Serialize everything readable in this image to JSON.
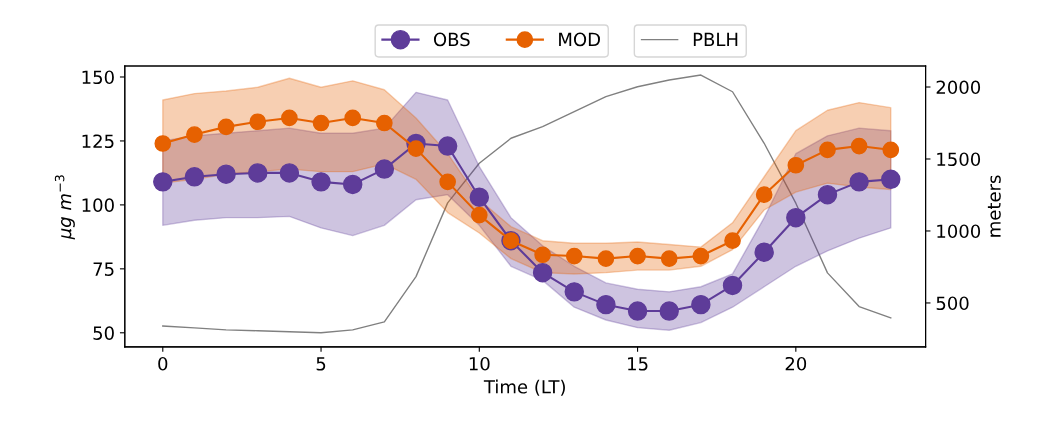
{
  "chart_data": {
    "type": "line",
    "xlabel": "Time (LT)",
    "ylabel": "μg m$^{−3}$",
    "y2label": "meters",
    "x": [
      0,
      1,
      2,
      3,
      4,
      5,
      6,
      7,
      8,
      9,
      10,
      11,
      12,
      13,
      14,
      15,
      16,
      17,
      18,
      19,
      20,
      21,
      22,
      23
    ],
    "series": [
      {
        "name": "OBS",
        "color": "#5e3c99",
        "marker": "circle",
        "values": [
          109,
          111,
          112,
          112.5,
          112.5,
          109,
          108,
          114,
          124,
          123,
          103,
          86,
          73.5,
          66,
          61,
          58.5,
          58.5,
          61,
          68.5,
          81.5,
          95,
          104,
          109,
          110
        ],
        "lower": [
          92,
          94,
          95,
          95,
          95.5,
          91,
          88,
          92,
          102,
          104,
          92,
          76,
          70.5,
          60,
          55,
          52,
          51,
          54,
          60,
          68,
          76,
          82,
          87,
          91
        ],
        "upper": [
          125,
          127,
          128,
          129,
          130,
          128,
          128,
          130,
          144,
          141,
          115,
          95,
          84,
          76,
          69.5,
          67,
          66,
          68,
          73,
          95,
          120,
          127,
          130,
          129
        ]
      },
      {
        "name": "MOD",
        "color": "#e66101",
        "marker": "circle",
        "values": [
          124,
          127.5,
          130.5,
          132.5,
          134,
          132,
          134,
          132,
          122,
          109,
          96,
          86,
          80.5,
          80,
          79,
          80,
          79,
          80,
          86,
          104,
          115.5,
          121.5,
          123,
          121.5
        ],
        "lower": [
          108.5,
          110,
          112,
          113,
          114,
          113,
          113,
          116,
          110,
          97,
          89,
          79,
          73.5,
          73,
          73.5,
          74.5,
          74.5,
          76,
          82.5,
          98,
          105,
          108.5,
          107,
          106
        ],
        "upper": [
          141,
          143.5,
          144.5,
          146,
          149.5,
          146,
          148.5,
          145,
          134,
          120,
          102,
          91.5,
          86,
          85,
          85,
          85.5,
          84.5,
          83.5,
          93,
          111,
          129,
          137,
          140,
          138
        ]
      },
      {
        "name": "PBLH",
        "color": "#808080",
        "axis": "y2",
        "marker": "none",
        "values": [
          340,
          327,
          313,
          307,
          300,
          293,
          313,
          369,
          683,
          1195,
          1470,
          1644,
          1725,
          1829,
          1933,
          2002,
          2049,
          2083,
          1967,
          1609,
          1193,
          709,
          475,
          396
        ]
      }
    ],
    "xlim": [
      -1.2,
      24.1
    ],
    "xticks": [
      0,
      5,
      10,
      15,
      20
    ],
    "ylim": [
      44.5,
      154.3
    ],
    "yticks": [
      50,
      75,
      100,
      125,
      150
    ],
    "y2lim": [
      195,
      2146
    ],
    "y2ticks": [
      500,
      1000,
      1500,
      2000
    ],
    "grid": false,
    "legend": "top",
    "line_style": "solid"
  }
}
